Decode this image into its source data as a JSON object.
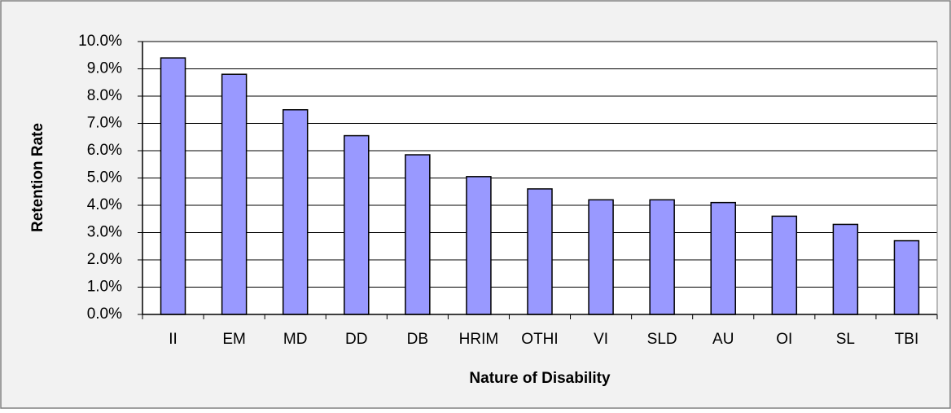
{
  "chart_data": {
    "type": "bar",
    "x_label": "Nature of Disability",
    "y_label": "Retention Rate",
    "categories": [
      "II",
      "EM",
      "MD",
      "DD",
      "DB",
      "HRIM",
      "OTHI",
      "VI",
      "SLD",
      "AU",
      "OI",
      "SL",
      "TBI"
    ],
    "values": [
      9.4,
      8.8,
      7.5,
      6.55,
      5.85,
      5.05,
      4.6,
      4.2,
      4.2,
      4.1,
      3.6,
      3.3,
      2.7
    ],
    "color": "#9999ff",
    "ylim": [
      0,
      10
    ],
    "yticks": [
      {
        "value": 0,
        "label": "0.0%"
      },
      {
        "value": 1,
        "label": "1.0%"
      },
      {
        "value": 2,
        "label": "2.0%"
      },
      {
        "value": 3,
        "label": "3.0%"
      },
      {
        "value": 4,
        "label": "4.0%"
      },
      {
        "value": 5,
        "label": "5.0%"
      },
      {
        "value": 6,
        "label": "6.0%"
      },
      {
        "value": 7,
        "label": "7.0%"
      },
      {
        "value": 8,
        "label": "8.0%"
      },
      {
        "value": 9,
        "label": "9.0%"
      },
      {
        "value": 10,
        "label": "10.0%"
      }
    ],
    "grid": true
  }
}
